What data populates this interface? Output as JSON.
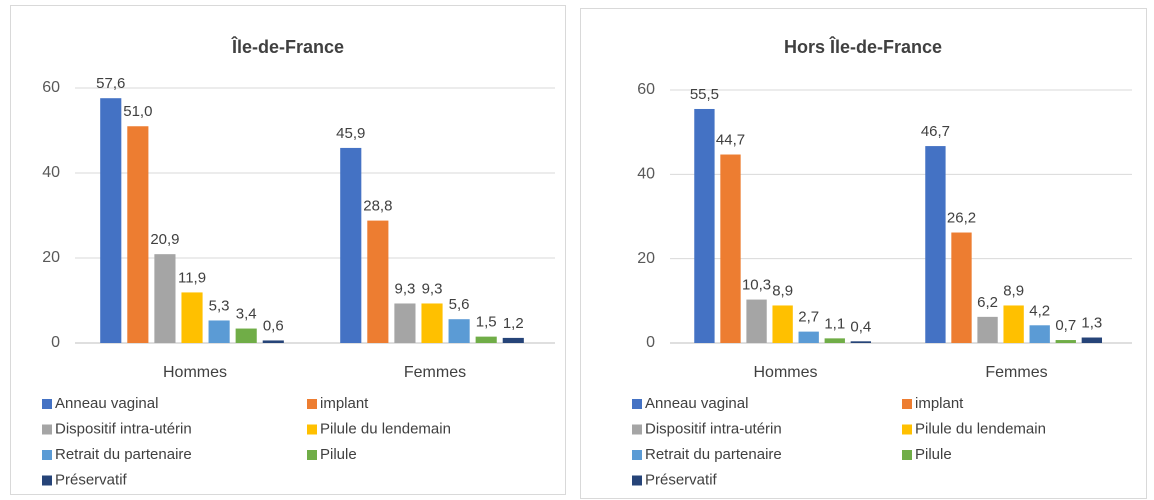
{
  "chart_data": [
    {
      "type": "bar",
      "title": "Île-de-France",
      "categories": [
        "Hommes",
        "Femmes"
      ],
      "series": [
        {
          "name": "Anneau vaginal",
          "color": "#4472c4",
          "values": [
            57.6,
            45.9
          ],
          "value_labels": [
            "57,6",
            "45,9"
          ]
        },
        {
          "name": "implant",
          "color": "#ed7d31",
          "values": [
            51.0,
            28.8
          ],
          "value_labels": [
            "51,0",
            "28,8"
          ]
        },
        {
          "name": "Dispositif intra-utérin",
          "color": "#a5a5a5",
          "values": [
            20.9,
            9.3
          ],
          "value_labels": [
            "20,9",
            "9,3"
          ]
        },
        {
          "name": "Pilule du lendemain",
          "color": "#ffc000",
          "values": [
            11.9,
            9.3
          ],
          "value_labels": [
            "11,9",
            "9,3"
          ]
        },
        {
          "name": "Retrait du partenaire",
          "color": "#5b9bd5",
          "values": [
            5.3,
            5.6
          ],
          "value_labels": [
            "5,3",
            "5,6"
          ]
        },
        {
          "name": "Pilule",
          "color": "#70ad47",
          "values": [
            3.4,
            1.5
          ],
          "value_labels": [
            "3,4",
            "1,5"
          ]
        },
        {
          "name": "Préservatif",
          "color": "#264478",
          "values": [
            0.6,
            1.2
          ],
          "value_labels": [
            "0,6",
            "1,2"
          ]
        }
      ],
      "ylim": [
        0,
        60
      ],
      "yticks": [
        0,
        20,
        40,
        60
      ],
      "grid": true
    },
    {
      "type": "bar",
      "title": "Hors Île-de-France",
      "categories": [
        "Hommes",
        "Femmes"
      ],
      "series": [
        {
          "name": "Anneau vaginal",
          "color": "#4472c4",
          "values": [
            55.5,
            46.7
          ],
          "value_labels": [
            "55,5",
            "46,7"
          ]
        },
        {
          "name": "implant",
          "color": "#ed7d31",
          "values": [
            44.7,
            26.2
          ],
          "value_labels": [
            "44,7",
            "26,2"
          ]
        },
        {
          "name": "Dispositif intra-utérin",
          "color": "#a5a5a5",
          "values": [
            10.3,
            6.2
          ],
          "value_labels": [
            "10,3",
            "6,2"
          ]
        },
        {
          "name": "Pilule du lendemain",
          "color": "#ffc000",
          "values": [
            8.9,
            8.9
          ],
          "value_labels": [
            "8,9",
            "8,9"
          ]
        },
        {
          "name": "Retrait du partenaire",
          "color": "#5b9bd5",
          "values": [
            2.7,
            4.2
          ],
          "value_labels": [
            "2,7",
            "4,2"
          ]
        },
        {
          "name": "Pilule",
          "color": "#70ad47",
          "values": [
            1.1,
            0.7
          ],
          "value_labels": [
            "1,1",
            "0,7"
          ]
        },
        {
          "name": "Préservatif",
          "color": "#264478",
          "values": [
            0.4,
            1.3
          ],
          "value_labels": [
            "0,4",
            "1,3"
          ]
        }
      ],
      "ylim": [
        0,
        60
      ],
      "yticks": [
        0,
        20,
        40,
        60
      ],
      "grid": true
    }
  ]
}
